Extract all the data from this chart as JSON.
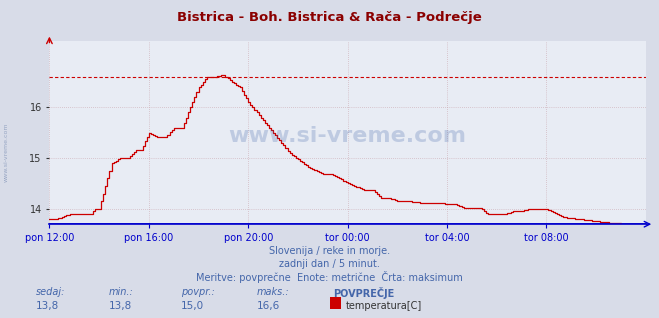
{
  "title": "Bistrica - Boh. Bistrica & Rača - Podrečje",
  "title_color": "#8B0000",
  "bg_color": "#d8dce8",
  "plot_bg_color": "#e8ecf4",
  "grid_color": "#c8b0b8",
  "line_color": "#cc0000",
  "max_line_color": "#cc0000",
  "axis_color": "#0000cc",
  "xlabels": [
    "pon 12:00",
    "pon 16:00",
    "pon 20:00",
    "tor 00:00",
    "tor 04:00",
    "tor 08:00"
  ],
  "ylim": [
    13.7,
    17.3
  ],
  "yticks": [
    14,
    15,
    16
  ],
  "max_value": 16.6,
  "footer_line1": "Slovenija / reke in morje.",
  "footer_line2": "zadnji dan / 5 minut.",
  "footer_line3": "Meritve: povprečne  Enote: metrične  Črta: maksimum",
  "stat_labels": [
    "sedaj:",
    "min.:",
    "povpr.:",
    "maks.:"
  ],
  "stat_values": [
    "13,8",
    "13,8",
    "15,0",
    "16,6"
  ],
  "legend_label": "temperatura[C]",
  "legend_color": "#cc0000",
  "watermark": "www.si-vreme.com",
  "sidewatermark": "www.si-vreme.com"
}
